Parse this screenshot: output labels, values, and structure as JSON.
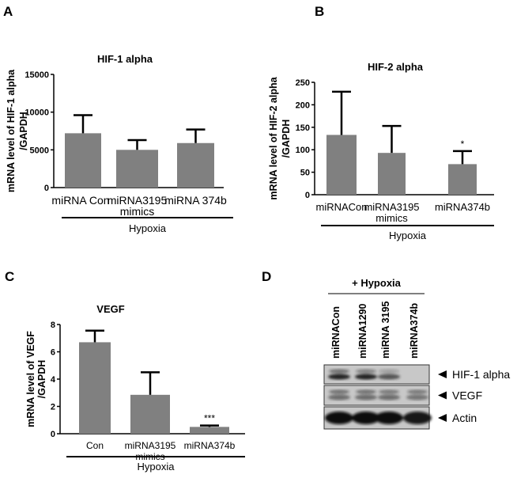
{
  "panels": [
    "A",
    "B",
    "C",
    "D"
  ],
  "chart_data": [
    {
      "panel": "A",
      "type": "bar",
      "title": "HIF-1 alpha",
      "ylabel": [
        "mRNA level of HIF-1 alpha",
        "/GAPDH"
      ],
      "categories": [
        [
          "miRNA Con"
        ],
        [
          "miRNA3195",
          "mimics"
        ],
        [
          "miRNA 374b"
        ]
      ],
      "values": [
        7200,
        5000,
        5900
      ],
      "error_upper": [
        9600,
        6300,
        7700
      ],
      "ylim": [
        0,
        15000
      ],
      "yticks": [
        "0",
        "5000",
        "10000",
        "15000"
      ],
      "group_label": "Hypoxia",
      "annotations": [
        "",
        "",
        ""
      ],
      "color": "#808080"
    },
    {
      "panel": "B",
      "type": "bar",
      "title": "HIF-2 alpha",
      "ylabel": [
        "mRNA level of HIF-2 alpha",
        "/GAPDH"
      ],
      "categories": [
        [
          "miRNACon"
        ],
        [
          "miRNA3195",
          "mimics"
        ],
        [
          "miRNA374b"
        ]
      ],
      "values": [
        133,
        93,
        68
      ],
      "error_upper": [
        229,
        153,
        97
      ],
      "ylim": [
        0,
        250
      ],
      "yticks": [
        "0",
        "50",
        "100",
        "150",
        "200",
        "250"
      ],
      "group_label": "Hypoxia",
      "annotations": [
        "",
        "",
        "*"
      ],
      "color": "#808080"
    },
    {
      "panel": "C",
      "type": "bar",
      "title": "VEGF",
      "ylabel": [
        "mRNA level of VEGF",
        "/GAPDH"
      ],
      "categories": [
        [
          "Con"
        ],
        [
          "miRNA3195",
          "mimics"
        ],
        [
          "miRNA374b"
        ]
      ],
      "values": [
        6.7,
        2.85,
        0.5
      ],
      "error_upper": [
        7.55,
        4.5,
        0.6
      ],
      "ylim": [
        0,
        8
      ],
      "yticks": [
        "0",
        "2",
        "4",
        "6",
        "8"
      ],
      "group_label": "Hypoxia",
      "annotations": [
        "",
        "",
        "***"
      ],
      "color": "#808080"
    }
  ],
  "western_blot": {
    "condition": "+ Hypoxia",
    "lanes": [
      "miRNACon",
      "miRNA1290",
      "miRNA 3195",
      "miRNA374b"
    ],
    "bands": [
      "HIF-1 alpha",
      "VEGF",
      "Actin"
    ]
  }
}
